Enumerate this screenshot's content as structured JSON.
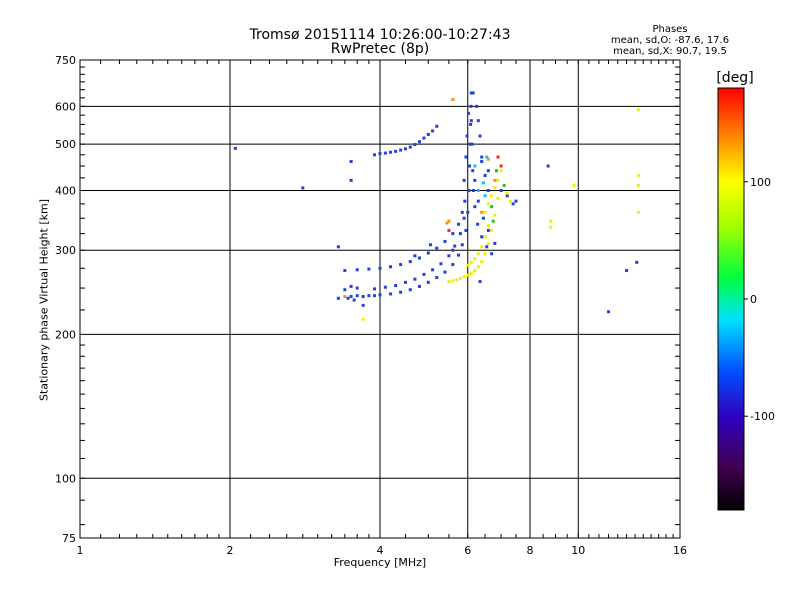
{
  "header": {
    "title_line1": "Tromsø 20151114 10:26:00-10:27:43",
    "title_line2": "RwPretec (8p)"
  },
  "stats": {
    "heading": "Phases",
    "line_o": "mean, sd,O: -87.6, 17.6",
    "line_x": "mean, sd,X: 90.7, 19.5"
  },
  "chart_data": {
    "type": "scatter",
    "title": "Tromsø 20151114 10:26:00-10:27:43",
    "subtitle": "RwPretec (8p)",
    "xlabel": "Frequency [MHz]",
    "ylabel": "Stationary phase Virtual Height [km]",
    "x_scale": "log",
    "y_scale": "log",
    "xlim": [
      1,
      16
    ],
    "ylim": [
      75,
      750
    ],
    "x_ticks": [
      1,
      2,
      4,
      6,
      8,
      10,
      16
    ],
    "x_tick_labels": [
      "1",
      "2",
      "4",
      "6",
      "8",
      "10",
      "16"
    ],
    "y_ticks": [
      75,
      100,
      200,
      300,
      400,
      500,
      600,
      750
    ],
    "y_tick_labels": [
      "75",
      "100",
      "200",
      "300",
      "400",
      "500",
      "600",
      "750"
    ],
    "grid": true,
    "colorbar": {
      "label": "[deg]",
      "range": [
        -180,
        180
      ],
      "ticks": [
        -100,
        0,
        100
      ],
      "tick_labels": [
        "-100",
        "0",
        "100"
      ]
    },
    "series": [
      {
        "mode": "O",
        "color": "#2040e0",
        "phase_mean": -87.6,
        "phase_sd": 17.6,
        "points": [
          [
            3.5,
            240
          ],
          [
            3.6,
            241
          ],
          [
            3.7,
            240
          ],
          [
            3.8,
            241
          ],
          [
            3.9,
            241
          ],
          [
            4.0,
            242
          ],
          [
            4.2,
            243
          ],
          [
            4.4,
            245
          ],
          [
            4.6,
            248
          ],
          [
            4.8,
            252
          ],
          [
            5.0,
            257
          ],
          [
            5.2,
            263
          ],
          [
            5.4,
            270
          ],
          [
            5.6,
            280
          ],
          [
            5.75,
            293
          ],
          [
            5.85,
            308
          ],
          [
            5.95,
            330
          ],
          [
            6.0,
            360
          ],
          [
            6.03,
            400
          ],
          [
            6.05,
            450
          ],
          [
            6.07,
            500
          ],
          [
            6.08,
            550
          ],
          [
            6.09,
            600
          ],
          [
            6.1,
            640
          ],
          [
            3.9,
            249
          ],
          [
            4.1,
            251
          ],
          [
            4.3,
            253
          ],
          [
            4.5,
            257
          ],
          [
            4.7,
            261
          ],
          [
            4.9,
            267
          ],
          [
            5.1,
            273
          ],
          [
            5.3,
            281
          ],
          [
            5.5,
            292
          ],
          [
            5.65,
            306
          ],
          [
            5.8,
            325
          ],
          [
            5.9,
            350
          ],
          [
            3.4,
            272
          ],
          [
            3.6,
            273
          ],
          [
            3.8,
            274
          ],
          [
            4.0,
            275
          ],
          [
            4.2,
            277
          ],
          [
            4.4,
            280
          ],
          [
            4.6,
            284
          ],
          [
            4.8,
            289
          ],
          [
            5.0,
            296
          ],
          [
            5.2,
            303
          ],
          [
            5.4,
            313
          ],
          [
            5.6,
            325
          ],
          [
            5.75,
            340
          ],
          [
            5.85,
            360
          ],
          [
            3.4,
            248
          ],
          [
            3.5,
            252
          ],
          [
            3.6,
            250
          ],
          [
            3.45,
            238
          ],
          [
            3.55,
            236
          ],
          [
            3.9,
            475
          ],
          [
            4.0,
            478
          ],
          [
            4.1,
            479
          ],
          [
            4.2,
            481
          ],
          [
            4.3,
            483
          ],
          [
            4.4,
            486
          ],
          [
            4.5,
            489
          ],
          [
            4.6,
            493
          ],
          [
            4.7,
            499
          ],
          [
            4.8,
            506
          ],
          [
            4.9,
            515
          ],
          [
            5.0,
            524
          ],
          [
            5.1,
            533
          ],
          [
            5.2,
            545
          ],
          [
            6.1,
            560
          ],
          [
            6.12,
            500
          ],
          [
            6.14,
            440
          ],
          [
            6.16,
            400
          ],
          [
            6.2,
            370
          ],
          [
            6.28,
            340
          ],
          [
            6.4,
            320
          ],
          [
            6.55,
            305
          ],
          [
            6.7,
            295
          ],
          [
            6.15,
            640
          ],
          [
            6.25,
            600
          ],
          [
            6.3,
            560
          ],
          [
            6.35,
            520
          ],
          [
            6.4,
            470
          ],
          [
            6.5,
            430
          ],
          [
            6.6,
            400
          ],
          [
            5.95,
            470
          ],
          [
            5.98,
            520
          ],
          [
            6.02,
            580
          ],
          [
            5.9,
            420
          ],
          [
            5.92,
            380
          ],
          [
            6.2,
            420
          ],
          [
            6.3,
            380
          ],
          [
            6.45,
            350
          ],
          [
            6.6,
            330
          ],
          [
            6.8,
            310
          ],
          [
            6.4,
            460
          ],
          [
            6.6,
            440
          ],
          [
            7.4,
            375
          ],
          [
            7.5,
            380
          ],
          [
            7.2,
            390
          ],
          [
            7.0,
            400
          ],
          [
            3.3,
            305
          ],
          [
            3.5,
            420
          ],
          [
            3.5,
            460
          ],
          [
            3.3,
            238
          ],
          [
            3.7,
            230
          ],
          [
            2.05,
            490
          ],
          [
            2.8,
            405
          ],
          [
            8.7,
            450
          ],
          [
            11.5,
            223
          ],
          [
            12.5,
            272
          ],
          [
            13.1,
            283
          ],
          [
            6.35,
            258
          ],
          [
            4.7,
            292
          ],
          [
            5.6,
            300
          ],
          [
            5.05,
            308
          ]
        ]
      },
      {
        "mode": "X",
        "color": "#f0f000",
        "phase_mean": 90.7,
        "phase_sd": 19.5,
        "points": [
          [
            5.5,
            258
          ],
          [
            5.6,
            259
          ],
          [
            5.7,
            260
          ],
          [
            5.8,
            262
          ],
          [
            5.9,
            264
          ],
          [
            6.0,
            266
          ],
          [
            6.1,
            268
          ],
          [
            6.2,
            272
          ],
          [
            6.3,
            277
          ],
          [
            6.4,
            284
          ],
          [
            6.5,
            295
          ],
          [
            6.6,
            310
          ],
          [
            6.7,
            330
          ],
          [
            6.8,
            355
          ],
          [
            6.9,
            385
          ],
          [
            6.0,
            279
          ],
          [
            6.1,
            283
          ],
          [
            6.2,
            288
          ],
          [
            6.3,
            295
          ],
          [
            6.4,
            305
          ],
          [
            6.5,
            320
          ],
          [
            6.6,
            338
          ],
          [
            6.5,
            360
          ],
          [
            6.6,
            375
          ],
          [
            6.7,
            390
          ],
          [
            6.8,
            405
          ],
          [
            6.9,
            420
          ],
          [
            7.0,
            440
          ],
          [
            7.2,
            395
          ],
          [
            7.3,
            380
          ],
          [
            8.8,
            345
          ],
          [
            8.8,
            335
          ],
          [
            9.8,
            410
          ],
          [
            13.2,
            430
          ],
          [
            13.2,
            410
          ],
          [
            13.2,
            360
          ],
          [
            13.2,
            590
          ],
          [
            3.7,
            215
          ]
        ]
      },
      {
        "mode": "mixed",
        "color": "#ff9000",
        "points": [
          [
            5.6,
            620
          ],
          [
            5.5,
            345
          ],
          [
            6.6,
            465
          ],
          [
            6.8,
            420
          ],
          [
            6.4,
            360
          ],
          [
            3.4,
            240
          ],
          [
            5.45,
            342
          ]
        ]
      },
      {
        "mode": "mixed",
        "color": "#00c8ff",
        "points": [
          [
            6.3,
            400
          ],
          [
            6.45,
            415
          ],
          [
            6.2,
            450
          ],
          [
            6.5,
            390
          ],
          [
            6.55,
            470
          ]
        ]
      },
      {
        "mode": "mixed",
        "color": "#20c020",
        "points": [
          [
            6.7,
            370
          ],
          [
            7.1,
            410
          ],
          [
            6.85,
            440
          ],
          [
            6.75,
            345
          ]
        ]
      },
      {
        "mode": "mixed",
        "color": "#ff2020",
        "points": [
          [
            7.0,
            450
          ],
          [
            6.9,
            470
          ],
          [
            5.5,
            330
          ]
        ]
      }
    ]
  }
}
